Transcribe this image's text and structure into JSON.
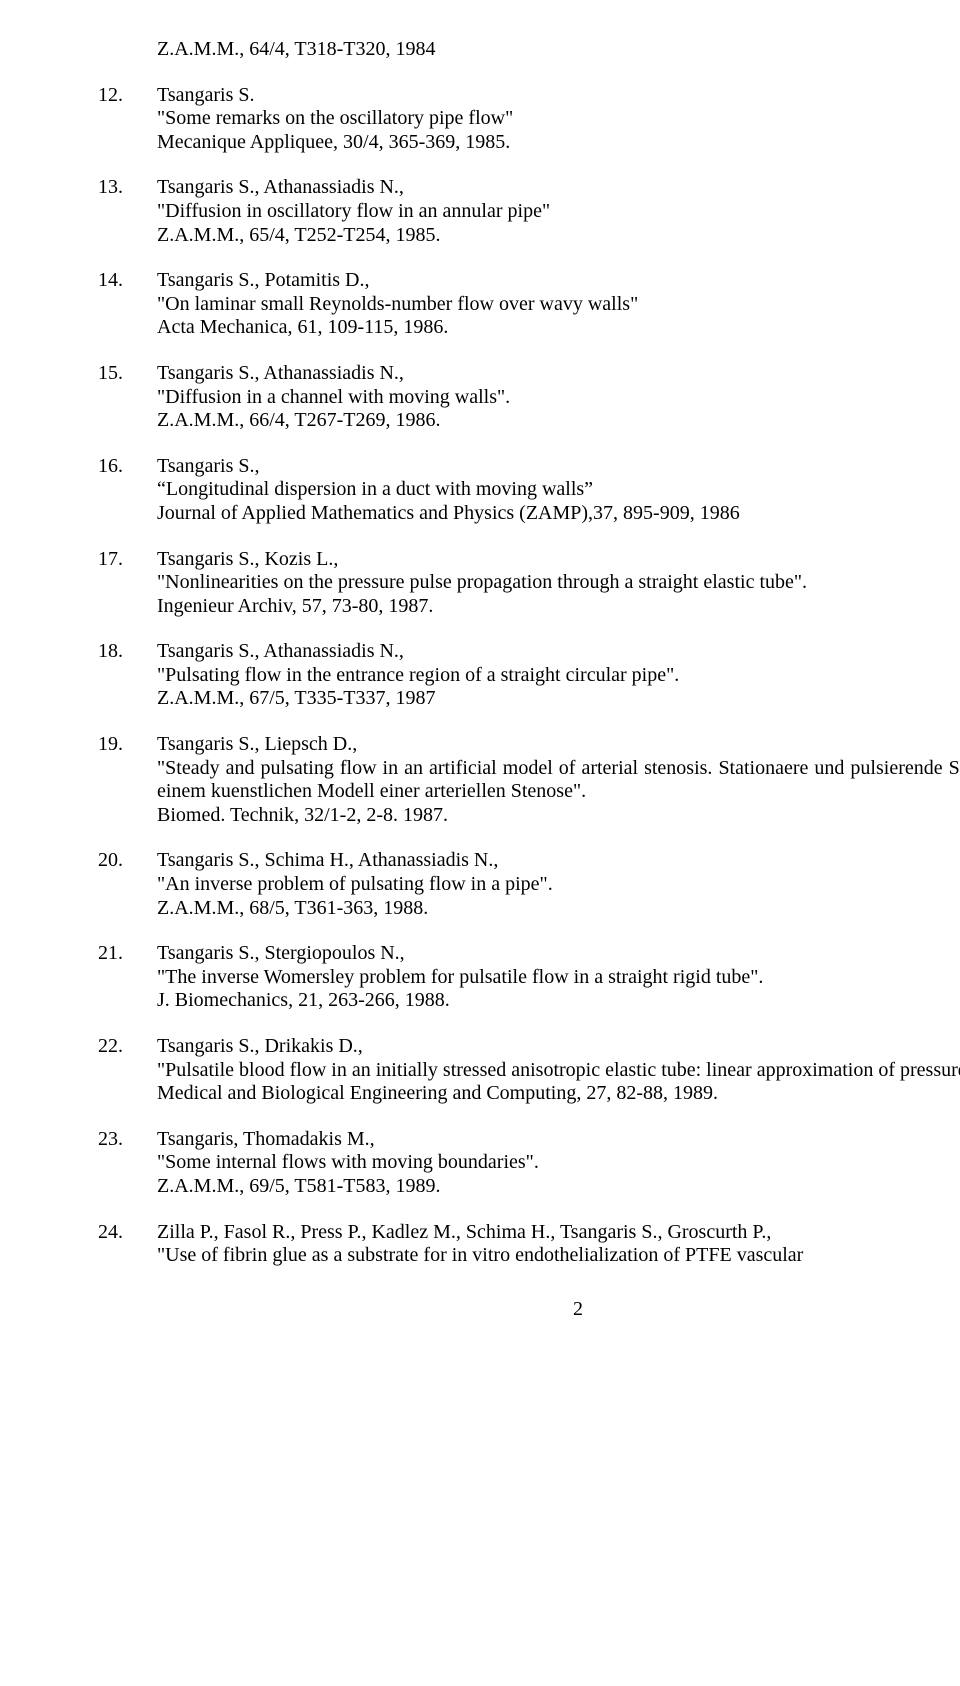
{
  "preEntryLine": "Z.A.M.M., 64/4, T318-T320, 1984",
  "entries": [
    {
      "num": "12.",
      "justify": false,
      "lines": [
        "Tsangaris S.",
        "\"Some remarks on the oscillatory pipe flow\"",
        "Mecanique Appliquee, 30/4, 365-369, 1985."
      ]
    },
    {
      "num": "13.",
      "justify": false,
      "lines": [
        "Tsangaris  S., Athanassiadis N.,",
        "\"Diffusion  in oscillatory  flow  in  an annular pipe\"",
        "Z.A.M.M., 65/4, T252-T254, 1985."
      ]
    },
    {
      "num": "14.",
      "justify": false,
      "lines": [
        "Tsangaris S.,  Potamitis D.,",
        "\"On laminar small  Reynolds-number flow  over wavy walls\"",
        "Acta Mechanica, 61, 109-115, 1986."
      ]
    },
    {
      "num": "15.",
      "justify": false,
      "lines": [
        "Tsangaris S., Athanassiadis N.,",
        "\"Diffusion in a channel with moving walls\".",
        " Z.A.M.M., 66/4, T267-T269, 1986."
      ]
    },
    {
      "num": "16.",
      "justify": false,
      "lines": [
        "Tsangaris S.,",
        "“Longitudinal dispersion in a duct with moving walls”",
        "Journal of Applied Mathematics and Physics (ZAMP),37, 895-909, 1986"
      ]
    },
    {
      "num": "17.",
      "justify": false,
      "lines": [
        "Tsangaris S., Kozis L.,",
        "\"Nonlinearities on the pressure pulse propagation through a straight elastic tube\".",
        "Ingenieur Archiv, 57, 73-80, 1987."
      ]
    },
    {
      "num": "18.",
      "justify": false,
      "lines": [
        "Tsangaris S., Athanassiadis N.,",
        "\"Pulsating flow in the entrance region of a straight circular pipe\".",
        "Z.A.M.M., 67/5, T335-T337, 1987"
      ]
    },
    {
      "num": "19.",
      "justify": true,
      "lines": [
        "Tsangaris S., Liepsch D.,",
        "\"Steady and pulsating flow in an artificial model of  arterial  stenosis.   Stationaere und  pulsierende   Stroemung  in   einem kuenstlichen Modell einer arteriellen Stenose\".",
        "Biomed. Technik, 32/1-2, 2-8. 1987."
      ]
    },
    {
      "num": "20.",
      "justify": false,
      "lines": [
        "Tsangaris S., Schima H., Athanassiadis N.,",
        "\"An inverse problem of pulsating flow in a pipe\".",
        "Z.A.M.M., 68/5, T361-363, 1988."
      ]
    },
    {
      "num": "21.",
      "justify": false,
      "lines": [
        "Tsangaris  S.,  Stergiopoulos  N.,",
        "\"The  inverse  Womersley  problem   for pulsatile flow in a straight rigid tube\".",
        "J. Biomechanics, 21, 263-266, 1988."
      ]
    },
    {
      "num": "22.",
      "justify": true,
      "lines": [
        "Tsangaris S., Drikakis D.,",
        "\"Pulsatile   blood  flow  in  an  initially   stressed  anisotropic  elastic  tube:  linear approximation of pressure waves\".",
        "Medical and Biological Engineering and Computing, 27, 82-88, 1989."
      ]
    },
    {
      "num": "23.",
      "justify": false,
      "lines": [
        "Tsangaris, Thomadakis M.,",
        "\"Some internal flows with moving boundaries\".",
        "Z.A.M.M., 69/5, T581-T583, 1989."
      ]
    },
    {
      "num": "24.",
      "justify": true,
      "lines": [
        "Zilla P., Fasol R., Press P., Kadlez M., Schima H., Tsangaris S., Groscurth P.,",
        "\"Use of fibrin glue as a substrate for in vitro endothelialization of  PTFE vascular"
      ]
    }
  ],
  "pageNumber": "2"
}
